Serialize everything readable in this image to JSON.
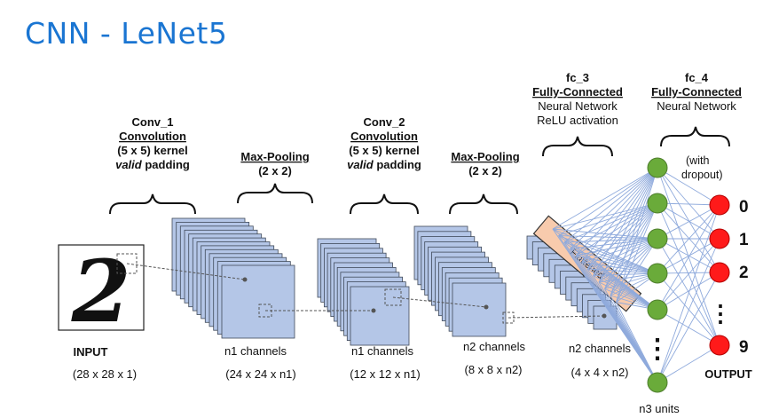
{
  "title": "CNN - LeNet5",
  "input": {
    "label": "INPUT",
    "dims": "(28 x 28 x 1)",
    "digit": "2"
  },
  "layers": [
    {
      "name": "Conv_1",
      "kind": "Convolution",
      "kernel": "(5 x 5) kernel",
      "padding_word": "valid",
      "padding_rest": " padding",
      "channels": "n1 channels",
      "dims": "(24 x 24 x n1)"
    },
    {
      "name": "Max-Pooling",
      "size": "(2 x 2)",
      "channels": "n1 channels",
      "dims": "(12 x 12 x n1)"
    },
    {
      "name": "Conv_2",
      "kind": "Convolution",
      "kernel": "(5 x 5) kernel",
      "padding_word": "valid",
      "padding_rest": " padding",
      "channels": "n2 channels",
      "dims": "(8 x 8 x n2)"
    },
    {
      "name": "Max-Pooling",
      "size": "(2 x 2)",
      "channels": "n2 channels",
      "dims": "(4 x 4 x n2)"
    }
  ],
  "fc3": {
    "name": "fc_3",
    "kind": "Fully-Connected",
    "line1": "Neural Network",
    "line2": "ReLU activation",
    "units": "n3 units"
  },
  "fc4": {
    "name": "fc_4",
    "kind": "Fully-Connected",
    "line1": "Neural Network",
    "note1": "(with",
    "note2": "dropout)"
  },
  "flattened_label": "Flattened",
  "output": {
    "label": "OUTPUT",
    "classes": [
      "0",
      "1",
      "2",
      "9"
    ],
    "ellipsis": "⋮"
  },
  "hidden_ellipsis": "⋮",
  "colors": {
    "title": "#1a75d2",
    "feature_map": "#b4c6e7",
    "flatten_bar": "#f8cbad",
    "hidden_node": "#6aab3a",
    "output_node": "#ff1a1a",
    "connection": "#8faadc"
  }
}
